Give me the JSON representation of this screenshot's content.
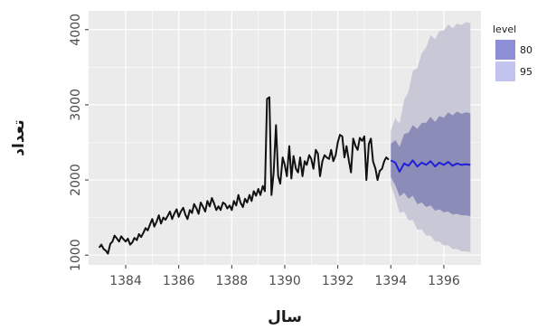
{
  "chart_data": {
    "type": "line",
    "title": "",
    "xlabel": "سال",
    "ylabel": "تعداد",
    "xlim": [
      1382.6,
      1397.4
    ],
    "ylim": [
      870,
      4250
    ],
    "x_ticks": [
      1384,
      1386,
      1388,
      1390,
      1392,
      1394,
      1396
    ],
    "y_ticks": [
      1000,
      2000,
      3000,
      4000
    ],
    "grid": true,
    "legend": {
      "title": "level",
      "position": "right",
      "entries": [
        {
          "label": "80",
          "color": "#8e8ed6"
        },
        {
          "label": "95",
          "color": "#c3c3ef"
        }
      ]
    },
    "colors": {
      "panel_bg": "#ebebeb",
      "grid": "#ffffff",
      "actual_line": "#111111",
      "forecast_line": "#1f1fd8",
      "band_80": "#8c8cb8",
      "band_95": "#c8c8d6"
    },
    "series": [
      {
        "role": "actual",
        "x": [
          1383.0,
          1383.08,
          1383.17,
          1383.25,
          1383.33,
          1383.42,
          1383.5,
          1383.58,
          1383.67,
          1383.75,
          1383.83,
          1383.92,
          1384.0,
          1384.08,
          1384.17,
          1384.25,
          1384.33,
          1384.42,
          1384.5,
          1384.58,
          1384.67,
          1384.75,
          1384.83,
          1384.92,
          1385.0,
          1385.08,
          1385.17,
          1385.25,
          1385.33,
          1385.42,
          1385.5,
          1385.58,
          1385.67,
          1385.75,
          1385.83,
          1385.92,
          1386.0,
          1386.08,
          1386.17,
          1386.25,
          1386.33,
          1386.42,
          1386.5,
          1386.58,
          1386.67,
          1386.75,
          1386.83,
          1386.92,
          1387.0,
          1387.08,
          1387.17,
          1387.25,
          1387.33,
          1387.42,
          1387.5,
          1387.58,
          1387.67,
          1387.75,
          1387.83,
          1387.92,
          1388.0,
          1388.08,
          1388.17,
          1388.25,
          1388.33,
          1388.42,
          1388.5,
          1388.58,
          1388.67,
          1388.75,
          1388.83,
          1388.92,
          1389.0,
          1389.08,
          1389.17,
          1389.25,
          1389.33,
          1389.42,
          1389.5,
          1389.58,
          1389.67,
          1389.75,
          1389.83,
          1389.92,
          1390.0,
          1390.08,
          1390.17,
          1390.25,
          1390.33,
          1390.42,
          1390.5,
          1390.58,
          1390.67,
          1390.75,
          1390.83,
          1390.92,
          1391.0,
          1391.08,
          1391.17,
          1391.25,
          1391.33,
          1391.42,
          1391.5,
          1391.58,
          1391.67,
          1391.75,
          1391.83,
          1391.92,
          1392.0,
          1392.08,
          1392.17,
          1392.25,
          1392.33,
          1392.42,
          1392.5,
          1392.58,
          1392.67,
          1392.75,
          1392.83,
          1392.92,
          1393.0,
          1393.08,
          1393.17,
          1393.25,
          1393.33,
          1393.42,
          1393.5,
          1393.58,
          1393.67,
          1393.75,
          1393.83,
          1393.92
        ],
        "y": [
          1100,
          1140,
          1080,
          1060,
          1020,
          1150,
          1180,
          1260,
          1220,
          1180,
          1250,
          1210,
          1180,
          1220,
          1140,
          1170,
          1230,
          1200,
          1280,
          1240,
          1300,
          1360,
          1330,
          1410,
          1480,
          1380,
          1450,
          1530,
          1420,
          1500,
          1470,
          1520,
          1580,
          1480,
          1550,
          1610,
          1510,
          1580,
          1630,
          1540,
          1480,
          1600,
          1560,
          1680,
          1620,
          1550,
          1700,
          1640,
          1580,
          1720,
          1650,
          1760,
          1690,
          1600,
          1650,
          1600,
          1700,
          1680,
          1620,
          1660,
          1600,
          1720,
          1660,
          1800,
          1700,
          1640,
          1750,
          1700,
          1800,
          1720,
          1850,
          1790,
          1880,
          1800,
          1920,
          1850,
          3080,
          3100,
          1800,
          2100,
          2730,
          2050,
          1950,
          2300,
          2200,
          2050,
          2450,
          2020,
          2320,
          2150,
          2100,
          2300,
          2050,
          2250,
          2200,
          2330,
          2280,
          2150,
          2400,
          2350,
          2050,
          2250,
          2330,
          2300,
          2280,
          2400,
          2250,
          2330,
          2500,
          2600,
          2580,
          2300,
          2450,
          2250,
          2100,
          2550,
          2450,
          2400,
          2560,
          2520,
          2580,
          2000,
          2480,
          2550,
          2250,
          2150,
          2000,
          2120,
          2150,
          2250,
          2300,
          2270
        ]
      },
      {
        "role": "forecast",
        "x": [
          1394.0,
          1394.17,
          1394.33,
          1394.5,
          1394.67,
          1394.83,
          1395.0,
          1395.17,
          1395.33,
          1395.5,
          1395.67,
          1395.83,
          1396.0,
          1396.17,
          1396.33,
          1396.5,
          1396.67,
          1396.83,
          1397.0
        ],
        "mean": [
          2260,
          2230,
          2110,
          2220,
          2190,
          2260,
          2180,
          2230,
          2200,
          2250,
          2180,
          2230,
          2200,
          2240,
          2190,
          2220,
          2200,
          2210,
          2200
        ],
        "lower80": [
          2040,
          1930,
          1780,
          1830,
          1750,
          1790,
          1680,
          1700,
          1640,
          1660,
          1590,
          1610,
          1570,
          1580,
          1540,
          1550,
          1530,
          1530,
          1520
        ],
        "upper80": [
          2480,
          2530,
          2440,
          2610,
          2630,
          2730,
          2680,
          2760,
          2760,
          2840,
          2770,
          2850,
          2830,
          2900,
          2860,
          2910,
          2880,
          2900,
          2890
        ],
        "lower95": [
          1930,
          1760,
          1560,
          1580,
          1460,
          1470,
          1340,
          1340,
          1260,
          1260,
          1180,
          1180,
          1130,
          1130,
          1080,
          1080,
          1050,
          1050,
          1040
        ],
        "upper95": [
          2660,
          2820,
          2750,
          3060,
          3180,
          3450,
          3490,
          3690,
          3760,
          3930,
          3870,
          3980,
          3990,
          4070,
          4020,
          4080,
          4060,
          4100,
          4090
        ]
      }
    ]
  }
}
